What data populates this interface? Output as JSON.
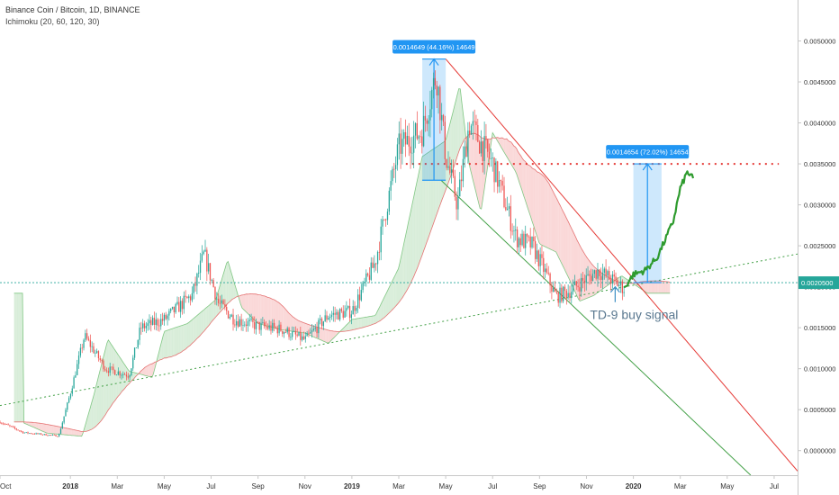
{
  "header": {
    "symbol": "Binance Coin / Bitcoin, 1D, BINANCE",
    "indicator": "Ichimoku (20, 60, 120, 30)"
  },
  "colors": {
    "bull": "#26a69a",
    "bear": "#ef5350",
    "kumo_bull": "#c8e6c9",
    "kumo_bear": "#f8c8c8",
    "projection": "#2e9b2e",
    "measure": "#2196f3",
    "resistance": "#e53935",
    "support_line": "#43a047",
    "desc_channel_top": "#e53935",
    "desc_channel_bottom": "#43a047",
    "current_price": "#26a69a"
  },
  "chart_data": {
    "type": "candlestick",
    "ylim": [
      -0.0003,
      0.0055
    ],
    "y_ticks": [
      "0.0000000",
      "0.0005000",
      "0.0010000",
      "0.0015000",
      "0.0020000",
      "0.0025000",
      "0.0030000",
      "0.0035000",
      "0.0040000",
      "0.0045000",
      "0.0050000"
    ],
    "y_tick_values": [
      0.0,
      0.0005,
      0.001,
      0.0015,
      0.002,
      0.0025,
      0.003,
      0.0035,
      0.004,
      0.0045,
      0.005
    ],
    "x_ticks": [
      "Oct",
      "2018",
      "Mar",
      "May",
      "Jul",
      "Sep",
      "Nov",
      "2019",
      "Mar",
      "May",
      "Jul",
      "Sep",
      "Nov",
      "2020",
      "Mar",
      "May",
      "Jul"
    ],
    "x_tick_values": [
      0,
      3,
      5,
      7,
      9,
      11,
      13,
      15,
      17,
      19,
      21,
      23,
      25,
      27,
      29,
      31,
      33
    ],
    "price_keypoints": [
      [
        0,
        0.00035
      ],
      [
        1,
        0.00022
      ],
      [
        2.5,
        0.00018
      ],
      [
        3,
        0.0007
      ],
      [
        3.6,
        0.0014
      ],
      [
        4.5,
        0.001
      ],
      [
        5.5,
        0.00092
      ],
      [
        6,
        0.0015
      ],
      [
        7,
        0.0016
      ],
      [
        8.2,
        0.0019
      ],
      [
        8.7,
        0.0024
      ],
      [
        9.3,
        0.0018
      ],
      [
        10,
        0.0016
      ],
      [
        11,
        0.00152
      ],
      [
        12,
        0.00148
      ],
      [
        13,
        0.00135
      ],
      [
        14,
        0.00165
      ],
      [
        15,
        0.0017
      ],
      [
        16,
        0.0023
      ],
      [
        17,
        0.0037
      ],
      [
        18,
        0.0039
      ],
      [
        18.6,
        0.0046
      ],
      [
        19,
        0.0036
      ],
      [
        19.5,
        0.003
      ],
      [
        20,
        0.004
      ],
      [
        21,
        0.0035
      ],
      [
        22,
        0.0026
      ],
      [
        22.7,
        0.0025
      ],
      [
        23.2,
        0.0022
      ],
      [
        23.7,
        0.00188
      ],
      [
        24.3,
        0.00195
      ],
      [
        25,
        0.0021
      ],
      [
        25.5,
        0.0022
      ],
      [
        26,
        0.0021
      ],
      [
        26.6,
        0.00198
      ]
    ],
    "projection_keypoints": [
      [
        26.6,
        0.00198
      ],
      [
        27,
        0.00215
      ],
      [
        27.5,
        0.0022
      ],
      [
        28,
        0.00235
      ],
      [
        28.4,
        0.0026
      ],
      [
        28.7,
        0.0028
      ],
      [
        29,
        0.0032
      ],
      [
        29.3,
        0.0034
      ],
      [
        29.6,
        0.0033
      ]
    ],
    "current_price_label": "0.0020500",
    "current_price_value": 0.00205,
    "resistance_value": 0.0035,
    "measure_1": {
      "label": "0.0014649 (44.16%) 14649",
      "x0": 18.0,
      "x1": 19.0,
      "y0": 0.0033,
      "y1": 0.00478
    },
    "measure_2": {
      "label": "0.0014654 (72.02%) 14654",
      "x0": 27.0,
      "x1": 28.2,
      "y0": 0.00205,
      "y1": 0.0035
    },
    "support_line": {
      "x0": 0,
      "y0": 0.00055,
      "x1": 34,
      "y1": 0.0024
    },
    "desc_channel_top": {
      "x0": 19.0,
      "y0": 0.00478,
      "x1": 34,
      "y1": -0.00025
    },
    "desc_channel_bottom": {
      "x0": 18.8,
      "y0": 0.0033,
      "x1": 32,
      "y1": -0.0003
    },
    "annotation": {
      "text": "TD-9 buy signal",
      "x": 26.3,
      "y": 0.0019
    }
  }
}
